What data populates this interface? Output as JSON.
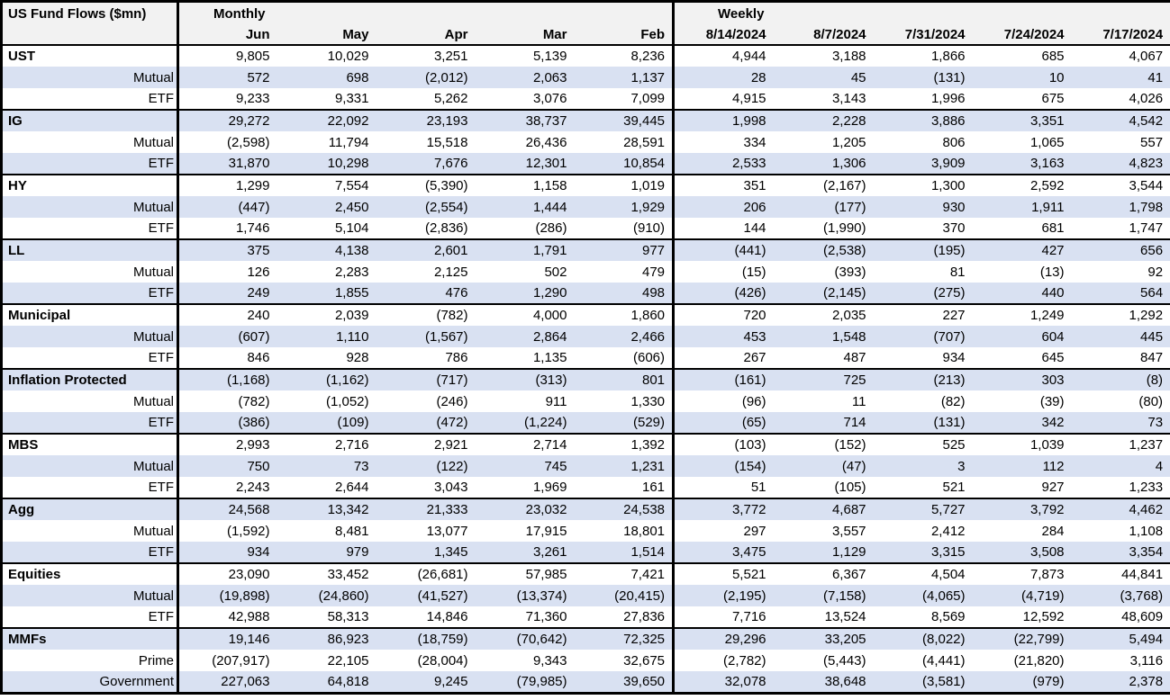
{
  "colors": {
    "stripe": "#d9e1f2",
    "header_bg": "#f2f2f2",
    "border": "#000000",
    "text": "#000000"
  },
  "chart_data": {
    "type": "table",
    "title": "US Fund Flows ($mn)",
    "negatives_shown_in_parentheses": true,
    "header": {
      "monthly_label": "Monthly",
      "weekly_label": "Weekly",
      "monthly_columns": [
        "Jun",
        "May",
        "Apr",
        "Mar",
        "Feb"
      ],
      "weekly_columns": [
        "8/14/2024",
        "8/7/2024",
        "7/31/2024",
        "7/24/2024",
        "7/17/2024"
      ]
    },
    "rows": [
      {
        "label": "UST",
        "kind": "group",
        "cells": [
          "9,805",
          "10,029",
          "3,251",
          "5,139",
          "8,236",
          "4,944",
          "3,188",
          "1,866",
          "685",
          "4,067"
        ]
      },
      {
        "label": "Mutual",
        "kind": "sub",
        "cells": [
          "572",
          "698",
          "(2,012)",
          "2,063",
          "1,137",
          "28",
          "45",
          "(131)",
          "10",
          "41"
        ]
      },
      {
        "label": "ETF",
        "kind": "sub",
        "cells": [
          "9,233",
          "9,331",
          "5,262",
          "3,076",
          "7,099",
          "4,915",
          "3,143",
          "1,996",
          "675",
          "4,026"
        ]
      },
      {
        "label": "IG",
        "kind": "group",
        "cells": [
          "29,272",
          "22,092",
          "23,193",
          "38,737",
          "39,445",
          "1,998",
          "2,228",
          "3,886",
          "3,351",
          "4,542"
        ]
      },
      {
        "label": "Mutual",
        "kind": "sub",
        "cells": [
          "(2,598)",
          "11,794",
          "15,518",
          "26,436",
          "28,591",
          "334",
          "1,205",
          "806",
          "1,065",
          "557"
        ]
      },
      {
        "label": "ETF",
        "kind": "sub",
        "cells": [
          "31,870",
          "10,298",
          "7,676",
          "12,301",
          "10,854",
          "2,533",
          "1,306",
          "3,909",
          "3,163",
          "4,823"
        ]
      },
      {
        "label": "HY",
        "kind": "group",
        "cells": [
          "1,299",
          "7,554",
          "(5,390)",
          "1,158",
          "1,019",
          "351",
          "(2,167)",
          "1,300",
          "2,592",
          "3,544"
        ]
      },
      {
        "label": "Mutual",
        "kind": "sub",
        "cells": [
          "(447)",
          "2,450",
          "(2,554)",
          "1,444",
          "1,929",
          "206",
          "(177)",
          "930",
          "1,911",
          "1,798"
        ]
      },
      {
        "label": "ETF",
        "kind": "sub",
        "cells": [
          "1,746",
          "5,104",
          "(2,836)",
          "(286)",
          "(910)",
          "144",
          "(1,990)",
          "370",
          "681",
          "1,747"
        ]
      },
      {
        "label": "LL",
        "kind": "group",
        "cells": [
          "375",
          "4,138",
          "2,601",
          "1,791",
          "977",
          "(441)",
          "(2,538)",
          "(195)",
          "427",
          "656"
        ]
      },
      {
        "label": "Mutual",
        "kind": "sub",
        "cells": [
          "126",
          "2,283",
          "2,125",
          "502",
          "479",
          "(15)",
          "(393)",
          "81",
          "(13)",
          "92"
        ]
      },
      {
        "label": "ETF",
        "kind": "sub",
        "cells": [
          "249",
          "1,855",
          "476",
          "1,290",
          "498",
          "(426)",
          "(2,145)",
          "(275)",
          "440",
          "564"
        ]
      },
      {
        "label": "Municipal",
        "kind": "group",
        "cells": [
          "240",
          "2,039",
          "(782)",
          "4,000",
          "1,860",
          "720",
          "2,035",
          "227",
          "1,249",
          "1,292"
        ]
      },
      {
        "label": "Mutual",
        "kind": "sub",
        "cells": [
          "(607)",
          "1,110",
          "(1,567)",
          "2,864",
          "2,466",
          "453",
          "1,548",
          "(707)",
          "604",
          "445"
        ]
      },
      {
        "label": "ETF",
        "kind": "sub",
        "cells": [
          "846",
          "928",
          "786",
          "1,135",
          "(606)",
          "267",
          "487",
          "934",
          "645",
          "847"
        ]
      },
      {
        "label": "Inflation Protected",
        "kind": "group",
        "cells": [
          "(1,168)",
          "(1,162)",
          "(717)",
          "(313)",
          "801",
          "(161)",
          "725",
          "(213)",
          "303",
          "(8)"
        ]
      },
      {
        "label": "Mutual",
        "kind": "sub",
        "cells": [
          "(782)",
          "(1,052)",
          "(246)",
          "911",
          "1,330",
          "(96)",
          "11",
          "(82)",
          "(39)",
          "(80)"
        ]
      },
      {
        "label": "ETF",
        "kind": "sub",
        "cells": [
          "(386)",
          "(109)",
          "(472)",
          "(1,224)",
          "(529)",
          "(65)",
          "714",
          "(131)",
          "342",
          "73"
        ]
      },
      {
        "label": "MBS",
        "kind": "group",
        "cells": [
          "2,993",
          "2,716",
          "2,921",
          "2,714",
          "1,392",
          "(103)",
          "(152)",
          "525",
          "1,039",
          "1,237"
        ]
      },
      {
        "label": "Mutual",
        "kind": "sub",
        "cells": [
          "750",
          "73",
          "(122)",
          "745",
          "1,231",
          "(154)",
          "(47)",
          "3",
          "112",
          "4"
        ]
      },
      {
        "label": "ETF",
        "kind": "sub",
        "cells": [
          "2,243",
          "2,644",
          "3,043",
          "1,969",
          "161",
          "51",
          "(105)",
          "521",
          "927",
          "1,233"
        ]
      },
      {
        "label": "Agg",
        "kind": "group",
        "cells": [
          "24,568",
          "13,342",
          "21,333",
          "23,032",
          "24,538",
          "3,772",
          "4,687",
          "5,727",
          "3,792",
          "4,462"
        ]
      },
      {
        "label": "Mutual",
        "kind": "sub",
        "cells": [
          "(1,592)",
          "8,481",
          "13,077",
          "17,915",
          "18,801",
          "297",
          "3,557",
          "2,412",
          "284",
          "1,108"
        ]
      },
      {
        "label": "ETF",
        "kind": "sub",
        "cells": [
          "934",
          "979",
          "1,345",
          "3,261",
          "1,514",
          "3,475",
          "1,129",
          "3,315",
          "3,508",
          "3,354"
        ]
      },
      {
        "label": "Equities",
        "kind": "group",
        "cells": [
          "23,090",
          "33,452",
          "(26,681)",
          "57,985",
          "7,421",
          "5,521",
          "6,367",
          "4,504",
          "7,873",
          "44,841"
        ]
      },
      {
        "label": "Mutual",
        "kind": "sub",
        "cells": [
          "(19,898)",
          "(24,860)",
          "(41,527)",
          "(13,374)",
          "(20,415)",
          "(2,195)",
          "(7,158)",
          "(4,065)",
          "(4,719)",
          "(3,768)"
        ]
      },
      {
        "label": "ETF",
        "kind": "sub",
        "cells": [
          "42,988",
          "58,313",
          "14,846",
          "71,360",
          "27,836",
          "7,716",
          "13,524",
          "8,569",
          "12,592",
          "48,609"
        ]
      },
      {
        "label": "MMFs",
        "kind": "group",
        "cells": [
          "19,146",
          "86,923",
          "(18,759)",
          "(70,642)",
          "72,325",
          "29,296",
          "33,205",
          "(8,022)",
          "(22,799)",
          "5,494"
        ]
      },
      {
        "label": "Prime",
        "kind": "sub",
        "cells": [
          "(207,917)",
          "22,105",
          "(28,004)",
          "9,343",
          "32,675",
          "(2,782)",
          "(5,443)",
          "(4,441)",
          "(21,820)",
          "3,116"
        ]
      },
      {
        "label": "Government",
        "kind": "sub",
        "cells": [
          "227,063",
          "64,818",
          "9,245",
          "(79,985)",
          "39,650",
          "32,078",
          "38,648",
          "(3,581)",
          "(979)",
          "2,378"
        ]
      }
    ]
  }
}
